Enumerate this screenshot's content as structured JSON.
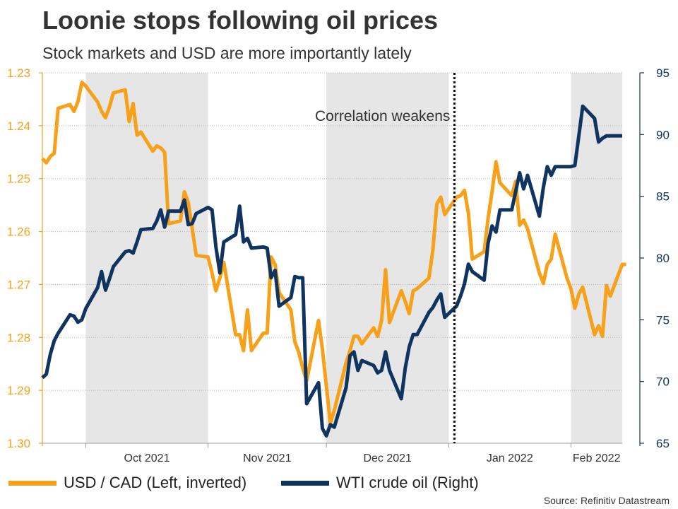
{
  "title": "Loonie stops following oil prices",
  "subtitle": "Stock markets and USD are more importantly lately",
  "source": "Source: Refinitiv Datastream",
  "colors": {
    "usdcad": "#F7A11A",
    "wti": "#0F3460",
    "shade": "#E6E6E6"
  },
  "chart_data": {
    "type": "line",
    "title": "Loonie stops following oil prices",
    "subtitle": "Stock markets and USD are more importantly lately",
    "xlabels": [
      "Oct 2021",
      "Nov 2021",
      "Dec 2021",
      "Jan 2022",
      "Feb 2022"
    ],
    "x_range": [
      "2021-09-20",
      "2022-02-14"
    ],
    "left_axis": {
      "ticks": [
        "1.23",
        "1.24",
        "1.25",
        "1.26",
        "1.27",
        "1.28",
        "1.29",
        "1.30"
      ],
      "range": [
        1.23,
        1.3
      ],
      "inverted": true
    },
    "right_axis": {
      "ticks": [
        "95",
        "90",
        "85",
        "80",
        "75",
        "70",
        "65"
      ],
      "range": [
        65,
        95
      ]
    },
    "shaded_months": [
      "Oct 2021",
      "Dec 2021",
      "Feb 2022"
    ],
    "annotation": {
      "text": "Correlation weakens",
      "date": "2022-01-03"
    },
    "legend": [
      "USD / CAD (Left, inverted)",
      "WTI crude oil (Right)"
    ],
    "series": [
      {
        "name": "USD / CAD (Left, inverted)",
        "axis": "left",
        "color": "#F7A11A",
        "data": [
          [
            "2021-09-20",
            1.2462
          ],
          [
            "2021-09-21",
            1.247
          ],
          [
            "2021-09-22",
            1.2458
          ],
          [
            "2021-09-23",
            1.2452
          ],
          [
            "2021-09-24",
            1.2367
          ],
          [
            "2021-09-27",
            1.236
          ],
          [
            "2021-09-28",
            1.2373
          ],
          [
            "2021-09-29",
            1.2355
          ],
          [
            "2021-09-30",
            1.2318
          ],
          [
            "2021-10-01",
            1.2325
          ],
          [
            "2021-10-04",
            1.2355
          ],
          [
            "2021-10-05",
            1.2373
          ],
          [
            "2021-10-06",
            1.2385
          ],
          [
            "2021-10-07",
            1.2365
          ],
          [
            "2021-10-08",
            1.2338
          ],
          [
            "2021-10-11",
            1.2332
          ],
          [
            "2021-10-12",
            1.2392
          ],
          [
            "2021-10-13",
            1.2358
          ],
          [
            "2021-10-14",
            1.2418
          ],
          [
            "2021-10-15",
            1.2412
          ],
          [
            "2021-10-18",
            1.2448
          ],
          [
            "2021-10-19",
            1.2438
          ],
          [
            "2021-10-20",
            1.2442
          ],
          [
            "2021-10-21",
            1.245
          ],
          [
            "2021-10-22",
            1.2585
          ],
          [
            "2021-10-25",
            1.258
          ],
          [
            "2021-10-26",
            1.2525
          ],
          [
            "2021-10-27",
            1.2545
          ],
          [
            "2021-10-28",
            1.2595
          ],
          [
            "2021-10-29",
            1.2645
          ],
          [
            "2021-11-01",
            1.2648
          ],
          [
            "2021-11-02",
            1.2678
          ],
          [
            "2021-11-03",
            1.2712
          ],
          [
            "2021-11-04",
            1.2688
          ],
          [
            "2021-11-05",
            1.2658
          ],
          [
            "2021-11-08",
            1.2795
          ],
          [
            "2021-11-09",
            1.2795
          ],
          [
            "2021-11-10",
            1.2825
          ],
          [
            "2021-11-11",
            1.2748
          ],
          [
            "2021-11-12",
            1.2825
          ],
          [
            "2021-11-15",
            1.2792
          ],
          [
            "2021-11-16",
            1.2792
          ],
          [
            "2021-11-17",
            1.2648
          ],
          [
            "2021-11-18",
            1.2662
          ],
          [
            "2021-11-19",
            1.2715
          ],
          [
            "2021-11-22",
            1.2748
          ],
          [
            "2021-11-23",
            1.2808
          ],
          [
            "2021-11-24",
            1.2828
          ],
          [
            "2021-11-25",
            1.2858
          ],
          [
            "2021-11-26",
            1.2882
          ],
          [
            "2021-11-29",
            1.2768
          ],
          [
            "2021-11-30",
            1.2822
          ],
          [
            "2021-12-01",
            1.2892
          ],
          [
            "2021-12-02",
            1.2962
          ],
          [
            "2021-12-03",
            1.2938
          ],
          [
            "2021-12-06",
            1.2848
          ],
          [
            "2021-12-07",
            1.2825
          ],
          [
            "2021-12-08",
            1.2798
          ],
          [
            "2021-12-09",
            1.2798
          ],
          [
            "2021-12-10",
            1.2812
          ],
          [
            "2021-12-13",
            1.2782
          ],
          [
            "2021-12-14",
            1.2798
          ],
          [
            "2021-12-15",
            1.2768
          ],
          [
            "2021-12-16",
            1.2672
          ],
          [
            "2021-12-17",
            1.2772
          ],
          [
            "2021-12-20",
            1.2712
          ],
          [
            "2021-12-21",
            1.2732
          ],
          [
            "2021-12-22",
            1.2755
          ],
          [
            "2021-12-23",
            1.2712
          ],
          [
            "2021-12-24",
            1.2708
          ],
          [
            "2021-12-27",
            1.2688
          ],
          [
            "2021-12-28",
            1.2635
          ],
          [
            "2021-12-29",
            1.2548
          ],
          [
            "2021-12-30",
            1.2535
          ],
          [
            "2021-12-31",
            1.2568
          ],
          [
            "2022-01-03",
            1.2535
          ],
          [
            "2022-01-04",
            1.2532
          ],
          [
            "2022-01-05",
            1.2522
          ],
          [
            "2022-01-06",
            1.2565
          ],
          [
            "2022-01-07",
            1.2652
          ],
          [
            "2022-01-10",
            1.2638
          ],
          [
            "2022-01-11",
            1.2575
          ],
          [
            "2022-01-12",
            1.2525
          ],
          [
            "2022-01-13",
            1.2468
          ],
          [
            "2022-01-14",
            1.2508
          ],
          [
            "2022-01-17",
            1.2532
          ],
          [
            "2022-01-18",
            1.2505
          ],
          [
            "2022-01-19",
            1.2588
          ],
          [
            "2022-01-20",
            1.2578
          ],
          [
            "2022-01-21",
            1.2595
          ],
          [
            "2022-01-24",
            1.2678
          ],
          [
            "2022-01-25",
            1.2698
          ],
          [
            "2022-01-26",
            1.2662
          ],
          [
            "2022-01-27",
            1.2652
          ],
          [
            "2022-01-28",
            1.2605
          ],
          [
            "2022-01-31",
            1.2688
          ],
          [
            "2022-02-01",
            1.2708
          ],
          [
            "2022-02-02",
            1.2745
          ],
          [
            "2022-02-03",
            1.2718
          ],
          [
            "2022-02-04",
            1.2705
          ],
          [
            "2022-02-07",
            1.2795
          ],
          [
            "2022-02-08",
            1.2778
          ],
          [
            "2022-02-09",
            1.2798
          ],
          [
            "2022-02-10",
            1.2702
          ],
          [
            "2022-02-11",
            1.2722
          ],
          [
            "2022-02-14",
            1.2662
          ],
          [
            "2022-02-15",
            1.2662
          ]
        ]
      },
      {
        "name": "WTI crude oil (Right)",
        "axis": "right",
        "color": "#0F3460",
        "data": [
          [
            "2021-09-20",
            70.3
          ],
          [
            "2021-09-21",
            70.6
          ],
          [
            "2021-09-22",
            72.2
          ],
          [
            "2021-09-23",
            73.3
          ],
          [
            "2021-09-24",
            73.9
          ],
          [
            "2021-09-27",
            75.4
          ],
          [
            "2021-09-28",
            75.3
          ],
          [
            "2021-09-29",
            74.8
          ],
          [
            "2021-09-30",
            75.0
          ],
          [
            "2021-10-01",
            75.9
          ],
          [
            "2021-10-04",
            77.6
          ],
          [
            "2021-10-05",
            78.9
          ],
          [
            "2021-10-06",
            77.4
          ],
          [
            "2021-10-07",
            78.3
          ],
          [
            "2021-10-08",
            79.3
          ],
          [
            "2021-10-11",
            80.5
          ],
          [
            "2021-10-12",
            80.6
          ],
          [
            "2021-10-13",
            80.4
          ],
          [
            "2021-10-14",
            81.3
          ],
          [
            "2021-10-15",
            82.3
          ],
          [
            "2021-10-18",
            82.4
          ],
          [
            "2021-10-19",
            83.0
          ],
          [
            "2021-10-20",
            83.9
          ],
          [
            "2021-10-21",
            82.5
          ],
          [
            "2021-10-22",
            83.8
          ],
          [
            "2021-10-25",
            83.8
          ],
          [
            "2021-10-26",
            84.7
          ],
          [
            "2021-10-27",
            82.7
          ],
          [
            "2021-10-28",
            82.8
          ],
          [
            "2021-10-29",
            83.6
          ],
          [
            "2021-11-01",
            84.1
          ],
          [
            "2021-11-02",
            83.9
          ],
          [
            "2021-11-03",
            80.9
          ],
          [
            "2021-11-04",
            78.8
          ],
          [
            "2021-11-05",
            81.3
          ],
          [
            "2021-11-08",
            81.9
          ],
          [
            "2021-11-09",
            84.2
          ],
          [
            "2021-11-10",
            81.3
          ],
          [
            "2021-11-11",
            81.6
          ],
          [
            "2021-11-12",
            80.8
          ],
          [
            "2021-11-15",
            80.9
          ],
          [
            "2021-11-16",
            80.8
          ],
          [
            "2021-11-17",
            78.4
          ],
          [
            "2021-11-18",
            79.0
          ],
          [
            "2021-11-19",
            76.1
          ],
          [
            "2021-11-22",
            76.8
          ],
          [
            "2021-11-23",
            78.5
          ],
          [
            "2021-11-24",
            78.4
          ],
          [
            "2021-11-25",
            78.4
          ],
          [
            "2021-11-26",
            68.2
          ],
          [
            "2021-11-29",
            69.9
          ],
          [
            "2021-11-30",
            66.2
          ],
          [
            "2021-12-01",
            65.6
          ],
          [
            "2021-12-02",
            66.5
          ],
          [
            "2021-12-03",
            66.3
          ],
          [
            "2021-12-06",
            69.5
          ],
          [
            "2021-12-07",
            72.1
          ],
          [
            "2021-12-08",
            72.4
          ],
          [
            "2021-12-09",
            70.9
          ],
          [
            "2021-12-10",
            71.7
          ],
          [
            "2021-12-13",
            71.3
          ],
          [
            "2021-12-14",
            70.7
          ],
          [
            "2021-12-15",
            70.9
          ],
          [
            "2021-12-16",
            72.4
          ],
          [
            "2021-12-17",
            70.9
          ],
          [
            "2021-12-20",
            68.6
          ],
          [
            "2021-12-21",
            71.1
          ],
          [
            "2021-12-22",
            72.8
          ],
          [
            "2021-12-23",
            73.8
          ],
          [
            "2021-12-24",
            73.8
          ],
          [
            "2021-12-27",
            75.6
          ],
          [
            "2021-12-28",
            76.0
          ],
          [
            "2021-12-29",
            76.6
          ],
          [
            "2021-12-30",
            77.1
          ],
          [
            "2021-12-31",
            75.2
          ],
          [
            "2022-01-03",
            76.1
          ],
          [
            "2022-01-04",
            76.9
          ],
          [
            "2022-01-05",
            77.9
          ],
          [
            "2022-01-06",
            79.5
          ],
          [
            "2022-01-07",
            78.9
          ],
          [
            "2022-01-10",
            78.2
          ],
          [
            "2022-01-11",
            81.2
          ],
          [
            "2022-01-12",
            82.6
          ],
          [
            "2022-01-13",
            82.1
          ],
          [
            "2022-01-14",
            83.9
          ],
          [
            "2022-01-17",
            83.9
          ],
          [
            "2022-01-18",
            85.4
          ],
          [
            "2022-01-19",
            86.9
          ],
          [
            "2022-01-20",
            85.6
          ],
          [
            "2022-01-21",
            86.7
          ],
          [
            "2022-01-24",
            83.4
          ],
          [
            "2022-01-25",
            85.7
          ],
          [
            "2022-01-26",
            87.4
          ],
          [
            "2022-01-27",
            86.7
          ],
          [
            "2022-01-28",
            87.4
          ],
          [
            "2022-01-31",
            87.4
          ],
          [
            "2022-02-01",
            87.4
          ],
          [
            "2022-02-02",
            87.5
          ],
          [
            "2022-02-03",
            89.9
          ],
          [
            "2022-02-04",
            92.3
          ],
          [
            "2022-02-07",
            91.3
          ],
          [
            "2022-02-08",
            89.4
          ],
          [
            "2022-02-09",
            89.7
          ],
          [
            "2022-02-10",
            89.9
          ],
          [
            "2022-02-11",
            89.9
          ],
          [
            "2022-02-14",
            89.9
          ]
        ]
      }
    ]
  }
}
